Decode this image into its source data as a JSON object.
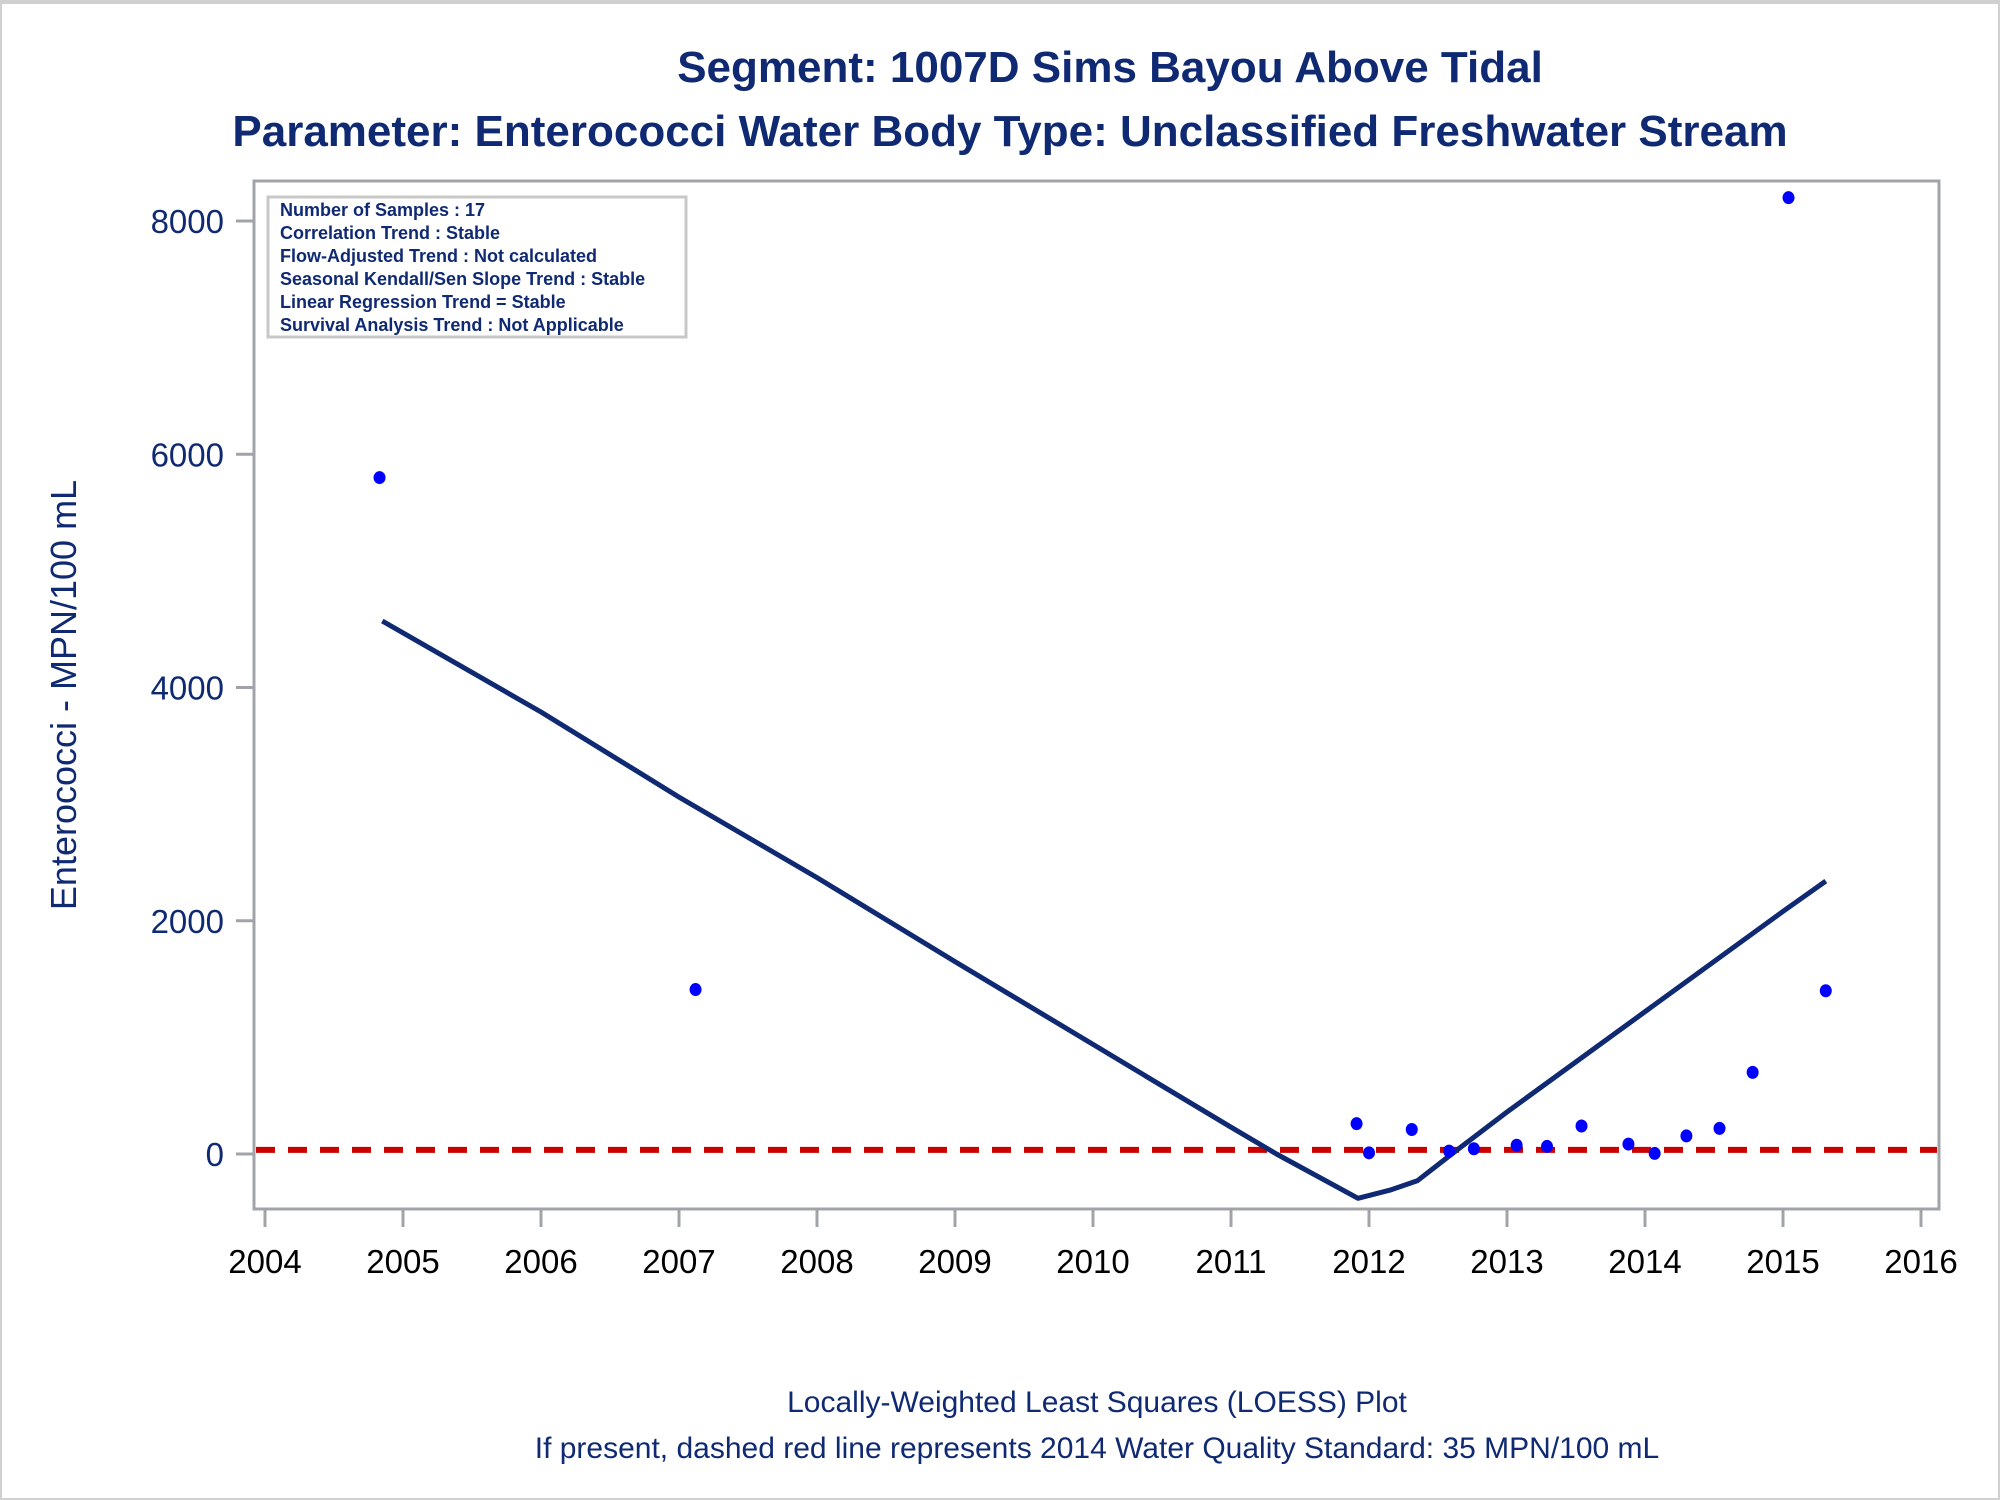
{
  "chart_data": {
    "type": "scatter",
    "title": "Segment: 1007D  Sims Bayou Above Tidal",
    "subtitle": "Parameter: Enterococci   Water Body Type: Unclassified Freshwater Stream",
    "xlabel": "",
    "ylabel": "Enterococci - MPN/100 mL",
    "xlim": [
      2004,
      2016
    ],
    "ylim": [
      -460,
      8400
    ],
    "xticks": [
      2004,
      2005,
      2006,
      2007,
      2008,
      2009,
      2010,
      2011,
      2012,
      2013,
      2014,
      2015,
      2016
    ],
    "xtick_labels": [
      "2004",
      "2005",
      "2006",
      "2007",
      "2008",
      "2009",
      "2010",
      "2011",
      "2012",
      "2013",
      "2014",
      "2015",
      "2016"
    ],
    "yticks": [
      0,
      2000,
      4000,
      6000,
      8000
    ],
    "ytick_labels": [
      "0",
      "2000",
      "4000",
      "6000",
      "8000"
    ],
    "grid": false,
    "series": [
      {
        "name": "Samples",
        "kind": "scatter",
        "color": "#0000ff",
        "x": [
          2004.83,
          2007.12,
          2011.91,
          2012.0,
          2012.31,
          2012.58,
          2012.76,
          2013.07,
          2013.29,
          2013.54,
          2013.88,
          2014.07,
          2014.3,
          2014.54,
          2014.78,
          2015.04,
          2015.31
        ],
        "y": [
          5800,
          1410,
          260,
          10,
          210,
          25,
          45,
          75,
          65,
          240,
          85,
          5,
          155,
          220,
          700,
          8200,
          1400
        ]
      },
      {
        "name": "LOESS",
        "kind": "line",
        "color": "#0f2a73",
        "x": [
          2004.85,
          2006.0,
          2007.0,
          2008.0,
          2009.0,
          2010.0,
          2011.0,
          2011.33,
          2011.92,
          2012.15,
          2012.35,
          2012.6,
          2013.0,
          2014.0,
          2015.0,
          2015.31
        ],
        "y": [
          4570,
          3790,
          3060,
          2370,
          1650,
          940,
          230,
          0,
          -380,
          -310,
          -230,
          0,
          360,
          1220,
          2080,
          2340
        ]
      },
      {
        "name": "2014 Water Quality Standard",
        "kind": "reference-line",
        "color": "#cc0000",
        "style": "dashed",
        "y": 35
      }
    ],
    "annotation_box": {
      "lines": [
        "Number of Samples : 17",
        "Correlation Trend : Stable",
        "Flow-Adjusted Trend : Not calculated",
        "Seasonal Kendall/Sen Slope Trend : Stable",
        "Linear Regression Trend = Stable",
        "Survival Analysis Trend : Not Applicable"
      ],
      "placement": "top-left"
    },
    "footnotes": [
      "Locally-Weighted Least Squares (LOESS) Plot",
      "If present, dashed red line represents 2014 Water Quality Standard: 35 MPN/100 mL"
    ]
  }
}
